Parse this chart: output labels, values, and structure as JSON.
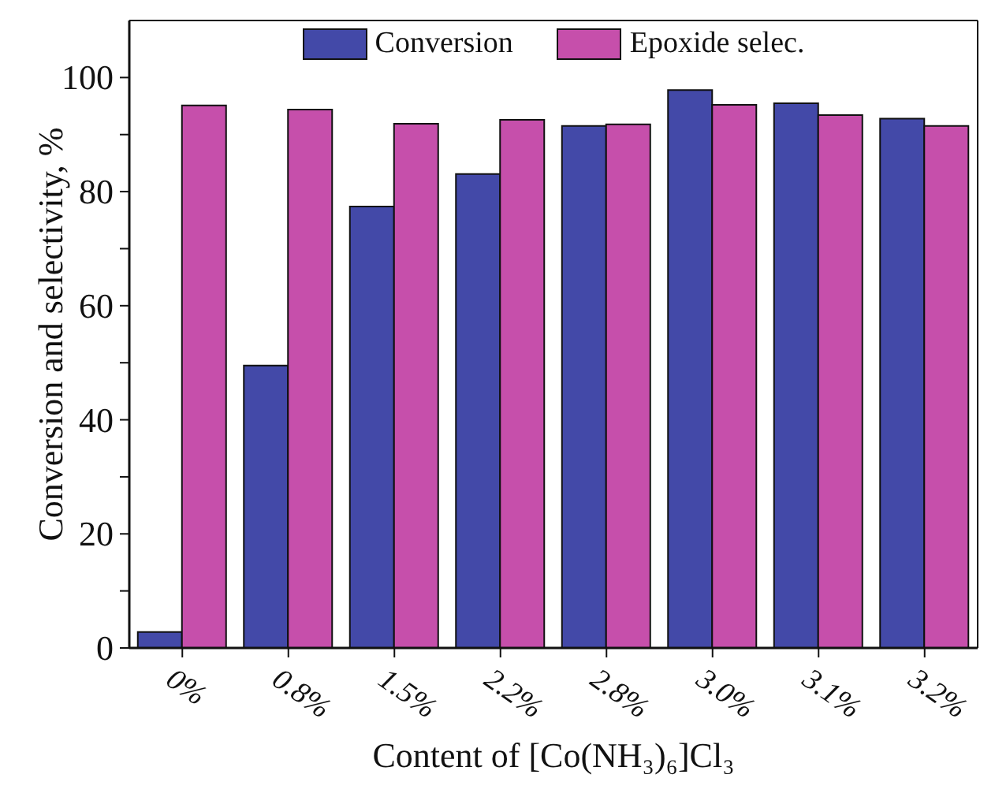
{
  "chart_data": {
    "type": "bar",
    "xlabel": "Content of [Co(NH₃)₆]Cl₃",
    "ylabel": "Conversion and selectivity, %",
    "categories": [
      "0%",
      "0.8%",
      "1.5%",
      "2.2%",
      "2.8%",
      "3.0%",
      "3.1%",
      "3.2%"
    ],
    "series": [
      {
        "name": "Conversion",
        "color": "#4349a8",
        "values": [
          2.8,
          49.5,
          77.4,
          83.1,
          91.5,
          97.8,
          95.5,
          92.8
        ]
      },
      {
        "name": "Epoxide selec.",
        "color": "#c64fab",
        "values": [
          95.1,
          94.4,
          91.9,
          92.6,
          91.8,
          95.2,
          93.4,
          91.5
        ]
      }
    ],
    "ylim": [
      0,
      110
    ],
    "yticks": [
      0,
      {
        "value": 10,
        "label": null
      },
      20,
      {
        "value": 30,
        "label": null
      },
      40,
      {
        "value": 50,
        "label": null
      },
      60,
      {
        "value": 70,
        "label": null
      },
      80,
      {
        "value": 90,
        "label": null
      },
      100
    ],
    "grid": false,
    "legend": "top"
  }
}
